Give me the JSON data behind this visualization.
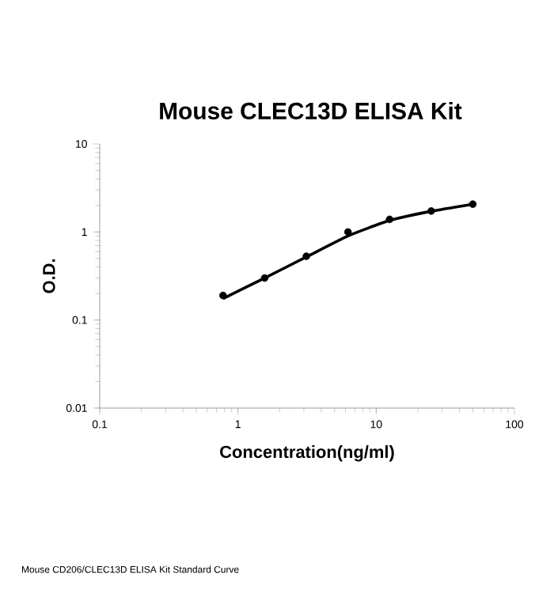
{
  "chart_data": {
    "type": "scatter",
    "title": "Mouse CLEC13D ELISA Kit",
    "xlabel": "Concentration(ng/ml)",
    "ylabel": "O.D.",
    "log": "xy",
    "xlim": [
      0.1,
      100
    ],
    "ylim": [
      0.01,
      10
    ],
    "xticks": [
      0.1,
      1,
      10,
      100
    ],
    "yticks": [
      0.01,
      0.1,
      1,
      10
    ],
    "series": [
      {
        "type": "line",
        "color": "#000000",
        "x": [
          0.78,
          1.56,
          3.125,
          6.25,
          12.5,
          25,
          50
        ],
        "values": [
          0.175,
          0.3,
          0.52,
          0.9,
          1.35,
          1.72,
          2.07
        ]
      },
      {
        "type": "scatter",
        "color": "#000000",
        "marker": "circle",
        "x": [
          0.78,
          1.56,
          3.125,
          6.25,
          12.5,
          25,
          50
        ],
        "values": [
          0.19,
          0.3,
          0.53,
          1.0,
          1.39,
          1.73,
          2.07
        ]
      }
    ],
    "annotations": [
      "Mouse CD206/CLEC13D ELISA Kit Standard Curve"
    ]
  }
}
